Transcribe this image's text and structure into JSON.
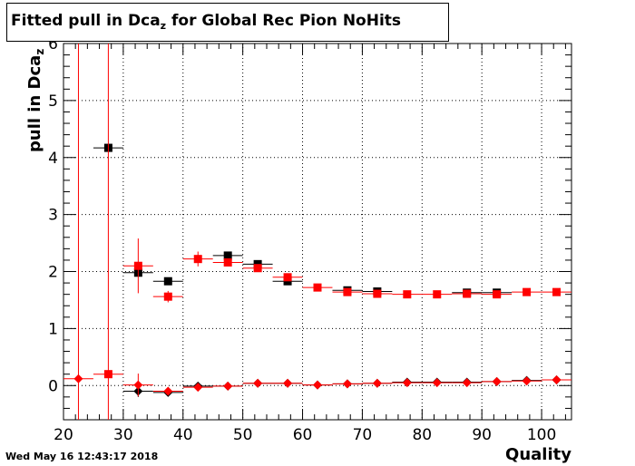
{
  "title": {
    "main": "Fitted pull in Dca",
    "sub": "z",
    "rest": " for Global Rec Pion NoHits"
  },
  "timestamp": "Wed May 16 12:43:17 2018",
  "xlabel": "Quality",
  "ylabel": {
    "main": "pull in Dca",
    "sub": "z"
  },
  "colors": {
    "black_series": "#000000",
    "red_series": "#ff0000",
    "grid": "#000000"
  },
  "chart_data": {
    "type": "scatter",
    "xlim": [
      20,
      105
    ],
    "ylim": [
      -0.6,
      6
    ],
    "xticks": [
      20,
      30,
      40,
      50,
      60,
      70,
      80,
      90,
      100
    ],
    "yticks": [
      0,
      1,
      2,
      3,
      4,
      5,
      6
    ],
    "grid": true,
    "series": [
      {
        "color": "#000000",
        "marker": "square",
        "points": [
          {
            "x": 27.5,
            "y": 4.17,
            "xerr": 2.5,
            "yerr": 0.05
          },
          {
            "x": 32.5,
            "y": 1.98,
            "xerr": 2.5,
            "yerr": 0.05
          },
          {
            "x": 37.5,
            "y": 1.83,
            "xerr": 2.5,
            "yerr": 0.05
          },
          {
            "x": 47.5,
            "y": 2.28,
            "xerr": 2.5,
            "yerr": 0.03
          },
          {
            "x": 52.5,
            "y": 2.13,
            "xerr": 2.5,
            "yerr": 0.02
          },
          {
            "x": 57.5,
            "y": 1.83,
            "xerr": 2.5,
            "yerr": 0.02
          },
          {
            "x": 67.5,
            "y": 1.67,
            "xerr": 2.5,
            "yerr": 0.02
          },
          {
            "x": 72.5,
            "y": 1.65,
            "xerr": 2.5,
            "yerr": 0.02
          },
          {
            "x": 87.5,
            "y": 1.63,
            "xerr": 2.5,
            "yerr": 0.02
          },
          {
            "x": 92.5,
            "y": 1.63,
            "xerr": 2.5,
            "yerr": 0.02
          }
        ]
      },
      {
        "color": "#ff0000",
        "marker": "square",
        "points": [
          {
            "x": 27.5,
            "y": 0.2,
            "xerr": 2.5,
            "yerr": 8
          },
          {
            "x": 32.5,
            "y": 2.1,
            "xerr": 2.5,
            "yerr": 0.48
          },
          {
            "x": 37.5,
            "y": 1.56,
            "xerr": 2.5,
            "yerr": 0.1
          },
          {
            "x": 42.5,
            "y": 2.22,
            "xerr": 2.5,
            "yerr": 0.13
          },
          {
            "x": 47.5,
            "y": 2.16,
            "xerr": 2.5,
            "yerr": 0.05
          },
          {
            "x": 52.5,
            "y": 2.06,
            "xerr": 2.5,
            "yerr": 0.03
          },
          {
            "x": 57.5,
            "y": 1.9,
            "xerr": 2.5,
            "yerr": 0.03
          },
          {
            "x": 62.5,
            "y": 1.72,
            "xerr": 2.5,
            "yerr": 0.02
          },
          {
            "x": 67.5,
            "y": 1.64,
            "xerr": 2.5,
            "yerr": 0.02
          },
          {
            "x": 72.5,
            "y": 1.61,
            "xerr": 2.5,
            "yerr": 0.02
          },
          {
            "x": 77.5,
            "y": 1.6,
            "xerr": 2.5,
            "yerr": 0.02
          },
          {
            "x": 82.5,
            "y": 1.6,
            "xerr": 2.5,
            "yerr": 0.02
          },
          {
            "x": 87.5,
            "y": 1.61,
            "xerr": 2.5,
            "yerr": 0.02
          },
          {
            "x": 92.5,
            "y": 1.6,
            "xerr": 2.5,
            "yerr": 0.02
          },
          {
            "x": 97.5,
            "y": 1.64,
            "xerr": 2.5,
            "yerr": 0.02
          },
          {
            "x": 102.5,
            "y": 1.64,
            "xerr": 2.5,
            "yerr": 0.02
          }
        ]
      },
      {
        "color": "#000000",
        "marker": "circle",
        "points": [
          {
            "x": 32.5,
            "y": -0.1,
            "xerr": 2.5,
            "yerr": 0.1
          },
          {
            "x": 37.5,
            "y": -0.12,
            "xerr": 2.5,
            "yerr": 0.03
          },
          {
            "x": 42.5,
            "y": -0.01,
            "xerr": 2.5,
            "yerr": 0.02
          },
          {
            "x": 47.5,
            "y": -0.01,
            "xerr": 2.5,
            "yerr": 0.02
          },
          {
            "x": 52.5,
            "y": 0.04,
            "xerr": 2.5,
            "yerr": 0.01
          },
          {
            "x": 57.5,
            "y": 0.04,
            "xerr": 2.5,
            "yerr": 0.01
          },
          {
            "x": 62.5,
            "y": 0.01,
            "xerr": 2.5,
            "yerr": 0.01
          },
          {
            "x": 67.5,
            "y": 0.03,
            "xerr": 2.5,
            "yerr": 0.01
          },
          {
            "x": 72.5,
            "y": 0.04,
            "xerr": 2.5,
            "yerr": 0.01
          },
          {
            "x": 77.5,
            "y": 0.06,
            "xerr": 2.5,
            "yerr": 0.01
          },
          {
            "x": 82.5,
            "y": 0.06,
            "xerr": 2.5,
            "yerr": 0.01
          },
          {
            "x": 87.5,
            "y": 0.06,
            "xerr": 2.5,
            "yerr": 0.01
          },
          {
            "x": 92.5,
            "y": 0.07,
            "xerr": 2.5,
            "yerr": 0.01
          },
          {
            "x": 97.5,
            "y": 0.09,
            "xerr": 2.5,
            "yerr": 0.01
          },
          {
            "x": 102.5,
            "y": 0.1,
            "xerr": 2.5,
            "yerr": 0.01
          }
        ]
      },
      {
        "color": "#ff0000",
        "marker": "circle",
        "points": [
          {
            "x": 22.5,
            "y": 0.12,
            "xerr": 2.5,
            "yerr": 8
          },
          {
            "x": 32.5,
            "y": 0.01,
            "xerr": 2.5,
            "yerr": 0.2
          },
          {
            "x": 37.5,
            "y": -0.1,
            "xerr": 2.5,
            "yerr": 0.05
          },
          {
            "x": 42.5,
            "y": -0.03,
            "xerr": 2.5,
            "yerr": 0.04
          },
          {
            "x": 47.5,
            "y": -0.01,
            "xerr": 2.5,
            "yerr": 0.03
          },
          {
            "x": 52.5,
            "y": 0.04,
            "xerr": 2.5,
            "yerr": 0.02
          },
          {
            "x": 57.5,
            "y": 0.04,
            "xerr": 2.5,
            "yerr": 0.02
          },
          {
            "x": 62.5,
            "y": 0.01,
            "xerr": 2.5,
            "yerr": 0.01
          },
          {
            "x": 67.5,
            "y": 0.03,
            "xerr": 2.5,
            "yerr": 0.01
          },
          {
            "x": 72.5,
            "y": 0.04,
            "xerr": 2.5,
            "yerr": 0.01
          },
          {
            "x": 77.5,
            "y": 0.05,
            "xerr": 2.5,
            "yerr": 0.01
          },
          {
            "x": 82.5,
            "y": 0.05,
            "xerr": 2.5,
            "yerr": 0.01
          },
          {
            "x": 87.5,
            "y": 0.05,
            "xerr": 2.5,
            "yerr": 0.01
          },
          {
            "x": 92.5,
            "y": 0.07,
            "xerr": 2.5,
            "yerr": 0.01
          },
          {
            "x": 97.5,
            "y": 0.08,
            "xerr": 2.5,
            "yerr": 0.01
          },
          {
            "x": 102.5,
            "y": 0.1,
            "xerr": 2.5,
            "yerr": 0.01
          }
        ]
      }
    ]
  }
}
